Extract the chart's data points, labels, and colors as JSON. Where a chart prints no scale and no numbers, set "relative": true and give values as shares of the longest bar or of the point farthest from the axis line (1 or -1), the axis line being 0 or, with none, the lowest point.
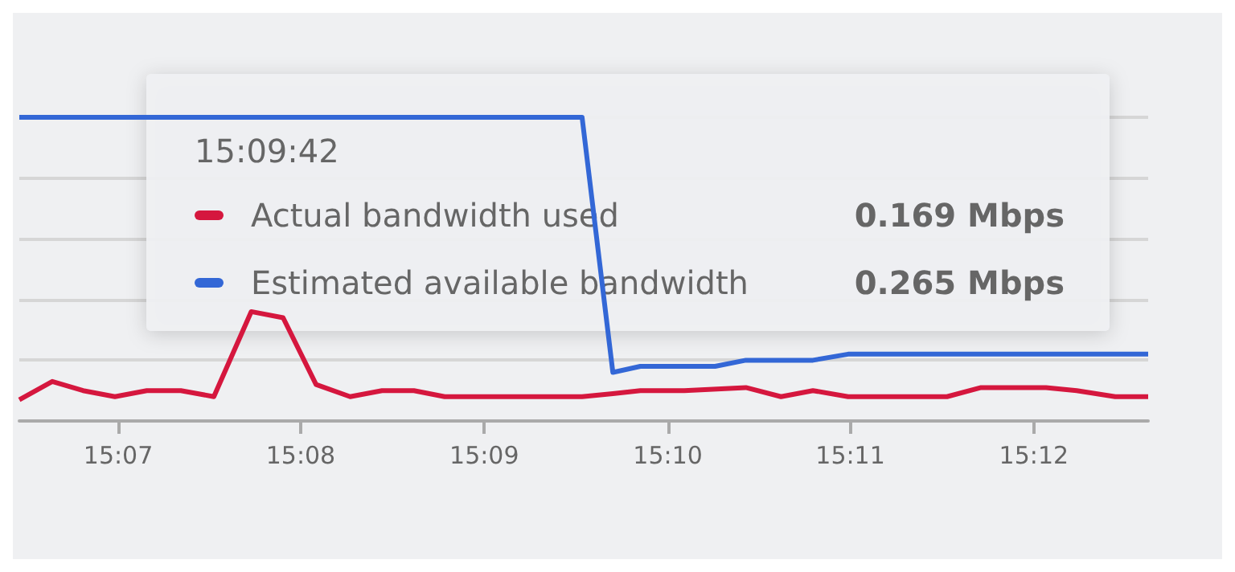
{
  "chart_data": {
    "type": "line",
    "relative": true,
    "legend": "top",
    "grid": "y",
    "marker": "none",
    "line_style": "solid",
    "xlim": [
      15.1077,
      15.2104
    ],
    "xticks": [
      {
        "value": 15.1167,
        "label": "15:07"
      },
      {
        "value": 15.1333,
        "label": "15:08"
      },
      {
        "value": 15.15,
        "label": "15:09"
      },
      {
        "value": 15.1667,
        "label": "15:10"
      },
      {
        "value": 15.1833,
        "label": "15:11"
      },
      {
        "value": 15.2,
        "label": "15:12"
      }
    ],
    "annotations": [
      "15:09:42",
      "0.169 Mbps",
      "0.265 Mbps"
    ],
    "series": [
      {
        "name": "Actual bandwidth used",
        "color": "#d5173e",
        "x": [
          15.1077,
          15.1107,
          15.1135,
          15.1164,
          15.1193,
          15.1224,
          15.1254,
          15.1288,
          15.1317,
          15.1347,
          15.1378,
          15.1407,
          15.1436,
          15.1464,
          15.1589,
          15.1617,
          15.1642,
          15.1682,
          15.1738,
          15.177,
          15.1799,
          15.1831,
          15.1859,
          15.1921,
          15.1952,
          15.2011,
          15.2039,
          15.2074,
          15.2104
        ],
        "values": [
          0.07,
          0.13,
          0.1,
          0.08,
          0.1,
          0.1,
          0.08,
          0.36,
          0.34,
          0.12,
          0.08,
          0.1,
          0.1,
          0.08,
          0.08,
          0.09,
          0.1,
          0.1,
          0.11,
          0.08,
          0.1,
          0.08,
          0.08,
          0.08,
          0.11,
          0.11,
          0.1,
          0.08,
          0.08
        ]
      },
      {
        "name": "Estimated available bandwidth",
        "color": "#3367d6",
        "x": [
          15.1077,
          15.1589,
          15.1617,
          15.1642,
          15.171,
          15.1738,
          15.1799,
          15.1831,
          15.2104
        ],
        "values": [
          1,
          1,
          0.16,
          0.18,
          0.18,
          0.2,
          0.2,
          0.22,
          0.22
        ]
      }
    ]
  }
}
